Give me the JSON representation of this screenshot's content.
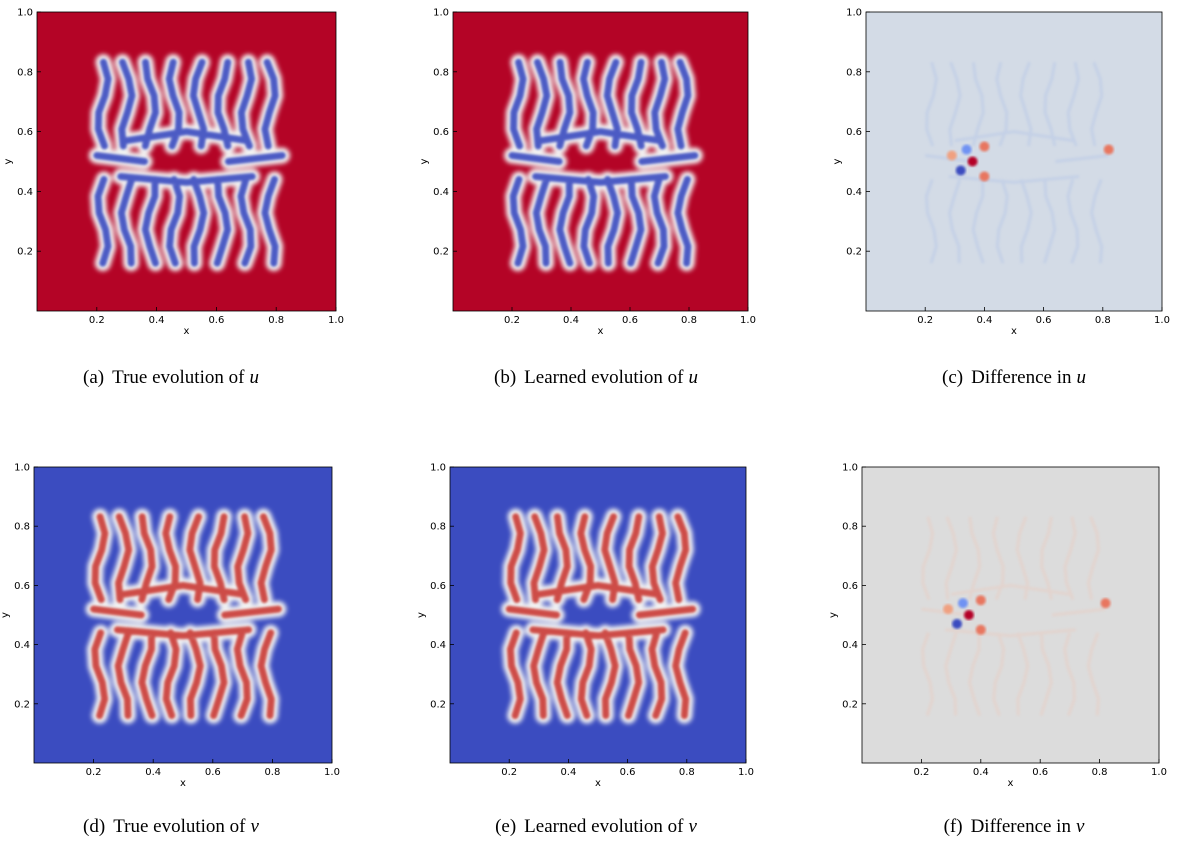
{
  "chart_data": [
    {
      "type": "heatmap",
      "xlabel": "x",
      "ylabel": "y",
      "xlim": [
        0,
        1
      ],
      "ylim": [
        0,
        1
      ],
      "xticks": [
        0.2,
        0.4,
        0.6,
        0.8,
        {
          "value": 1,
          "label": "1.0"
        }
      ],
      "yticks": [
        0.2,
        0.4,
        0.6,
        0.8,
        {
          "value": 1,
          "label": "1.0"
        }
      ],
      "colors": {
        "background": "#b40426",
        "pattern": "#3b4cc0"
      },
      "caption": "(a)",
      "caption_text": "True evolution of",
      "caption_var": "u"
    },
    {
      "type": "heatmap",
      "xlabel": "x",
      "ylabel": "y",
      "xlim": [
        0,
        1
      ],
      "ylim": [
        0,
        1
      ],
      "xticks": [
        0.2,
        0.4,
        0.6,
        0.8,
        {
          "value": 1,
          "label": "1.0"
        }
      ],
      "yticks": [
        0.2,
        0.4,
        0.6,
        0.8,
        {
          "value": 1,
          "label": "1.0"
        }
      ],
      "colors": {
        "background": "#b40426",
        "pattern": "#3b4cc0"
      },
      "caption": "(b)",
      "caption_text": "Learned evolution of",
      "caption_var": "u"
    },
    {
      "type": "heatmap",
      "xlabel": "x",
      "ylabel": "y",
      "xlim": [
        0,
        1
      ],
      "ylim": [
        0,
        1
      ],
      "xticks": [
        0.2,
        0.4,
        0.6,
        0.8,
        {
          "value": 1,
          "label": "1.0"
        }
      ],
      "yticks": [
        0.2,
        0.4,
        0.6,
        0.8,
        {
          "value": 1,
          "label": "1.0"
        }
      ],
      "colors": {
        "background": "#d3dbe6"
      },
      "caption": "(c)",
      "caption_text": "Difference in",
      "caption_var": "u"
    },
    {
      "type": "heatmap",
      "xlabel": "x",
      "ylabel": "y",
      "xlim": [
        0,
        1
      ],
      "ylim": [
        0,
        1
      ],
      "xticks": [
        0.2,
        0.4,
        0.6,
        0.8,
        {
          "value": 1,
          "label": "1.0"
        }
      ],
      "yticks": [
        0.2,
        0.4,
        0.6,
        0.8,
        {
          "value": 1,
          "label": "1.0"
        }
      ],
      "colors": {
        "background": "#3b4cc0",
        "pattern": "#c93a35"
      },
      "caption": "(d)",
      "caption_text": "True evolution of",
      "caption_var": "v"
    },
    {
      "type": "heatmap",
      "xlabel": "x",
      "ylabel": "y",
      "xlim": [
        0,
        1
      ],
      "ylim": [
        0,
        1
      ],
      "xticks": [
        0.2,
        0.4,
        0.6,
        0.8,
        {
          "value": 1,
          "label": "1.0"
        }
      ],
      "yticks": [
        0.2,
        0.4,
        0.6,
        0.8,
        {
          "value": 1,
          "label": "1.0"
        }
      ],
      "colors": {
        "background": "#3b4cc0",
        "pattern": "#c93a35"
      },
      "caption": "(e)",
      "caption_text": "Learned evolution of",
      "caption_var": "v"
    },
    {
      "type": "heatmap",
      "xlabel": "x",
      "ylabel": "y",
      "xlim": [
        0,
        1
      ],
      "ylim": [
        0,
        1
      ],
      "xticks": [
        0.2,
        0.4,
        0.6,
        0.8,
        {
          "value": 1,
          "label": "1.0"
        }
      ],
      "yticks": [
        0.2,
        0.4,
        0.6,
        0.8,
        {
          "value": 1,
          "label": "1.0"
        }
      ],
      "colors": {
        "background": "#dcdcdc"
      },
      "caption": "(f)",
      "caption_text": "Difference in",
      "caption_var": "v"
    }
  ]
}
